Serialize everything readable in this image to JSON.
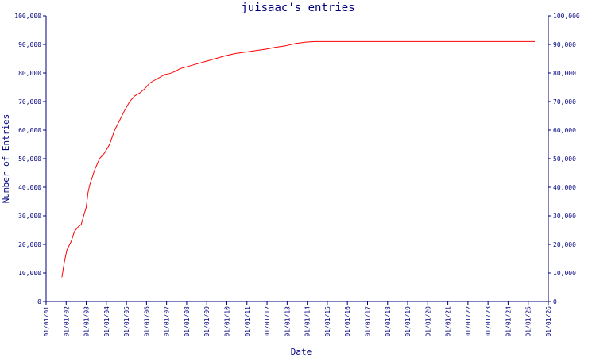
{
  "chart_data": {
    "type": "line",
    "title": "juisaac's entries",
    "xlabel": "Date",
    "ylabel": "Number of Entries",
    "ylim": [
      0,
      100000
    ],
    "y_ticks": [
      0,
      10000,
      20000,
      30000,
      40000,
      50000,
      60000,
      70000,
      80000,
      90000,
      100000
    ],
    "y_tick_labels": [
      "0",
      "10,000",
      "20,000",
      "30,000",
      "40,000",
      "50,000",
      "60,000",
      "70,000",
      "80,000",
      "90,000",
      "100,000"
    ],
    "xlim": [
      "2001-01-01",
      "2026-01-01"
    ],
    "x_ticks": [
      "2001-01-01",
      "2002-01-01",
      "2003-01-01",
      "2004-01-01",
      "2005-01-01",
      "2006-01-01",
      "2007-01-01",
      "2008-01-01",
      "2009-01-01",
      "2010-01-01",
      "2011-01-01",
      "2012-01-01",
      "2013-01-01",
      "2014-01-01",
      "2015-01-01",
      "2016-01-01",
      "2017-01-01",
      "2018-01-01",
      "2019-01-01",
      "2020-01-01",
      "2021-01-01",
      "2022-01-01",
      "2023-01-01",
      "2024-01-01",
      "2025-01-01",
      "2026-01-01"
    ],
    "x_tick_labels": [
      "01/01/01",
      "01/01/02",
      "01/01/03",
      "01/01/04",
      "01/01/05",
      "01/01/06",
      "01/01/07",
      "01/01/08",
      "01/01/09",
      "01/01/10",
      "01/01/11",
      "01/01/12",
      "01/01/13",
      "01/01/14",
      "01/01/15",
      "01/01/16",
      "01/01/17",
      "01/01/18",
      "01/01/19",
      "01/01/20",
      "01/01/21",
      "01/01/22",
      "01/01/23",
      "01/01/24",
      "01/01/25",
      "01/01/26"
    ],
    "grid": false,
    "legend": "none",
    "colors": {
      "axis": "#00007f",
      "series": "#ff0000",
      "background": "#ffffff"
    },
    "series": [
      {
        "x": [
          "2001-10-15",
          "2001-12-01",
          "2002-01-15",
          "2002-04-01",
          "2002-06-01",
          "2002-08-01",
          "2002-10-01",
          "2003-01-01",
          "2003-02-01",
          "2003-03-01",
          "2003-06-01",
          "2003-09-01",
          "2003-12-01",
          "2004-03-01",
          "2004-06-01",
          "2004-09-01",
          "2004-12-01",
          "2005-03-01",
          "2005-06-01",
          "2005-09-01",
          "2005-12-01",
          "2006-03-01",
          "2006-06-01",
          "2006-09-01",
          "2006-12-01",
          "2007-03-01",
          "2007-06-01",
          "2007-09-01",
          "2007-12-01",
          "2008-06-01",
          "2008-12-01",
          "2009-06-01",
          "2009-12-01",
          "2010-06-01",
          "2010-12-01",
          "2011-06-01",
          "2011-12-01",
          "2012-06-01",
          "2012-12-01",
          "2013-06-01",
          "2013-12-01",
          "2014-06-01",
          "2014-12-01",
          "2015-06-01",
          "2015-10-01",
          "2016-06-01",
          "2017-06-01",
          "2018-06-01",
          "2019-06-01",
          "2020-06-01",
          "2021-06-01",
          "2022-06-01",
          "2023-06-01",
          "2024-06-01",
          "2025-05-01"
        ],
        "y": [
          8500,
          14000,
          18000,
          21000,
          24500,
          26000,
          27000,
          33000,
          38000,
          40500,
          46000,
          50000,
          52000,
          55000,
          60000,
          63500,
          67000,
          70000,
          72000,
          73000,
          74500,
          76500,
          77500,
          78500,
          79500,
          79800,
          80500,
          81500,
          82000,
          83000,
          84000,
          85000,
          86000,
          86800,
          87300,
          87800,
          88300,
          89000,
          89500,
          90300,
          90800,
          91000,
          91000,
          91000,
          91000,
          91000,
          91000,
          91000,
          91000,
          91000,
          91000,
          91000,
          91000,
          91000,
          91000
        ]
      }
    ]
  }
}
